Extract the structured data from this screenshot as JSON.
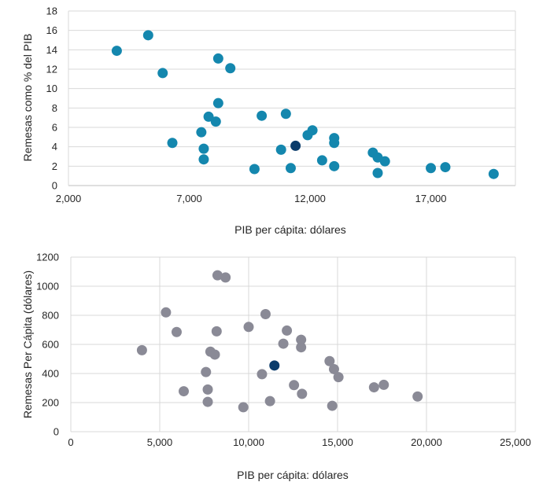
{
  "chart_data": [
    {
      "type": "scatter",
      "title": "",
      "xlabel": "PIB per cápita: dólares",
      "ylabel": "Remesas como % del PIB",
      "xlim": [
        2000,
        20500
      ],
      "ylim": [
        0,
        18
      ],
      "xticks": [
        2000,
        7000,
        12000,
        17000
      ],
      "xtick_labels": [
        "2,000",
        "7,000",
        "12,000",
        "17,000"
      ],
      "yticks": [
        0,
        2,
        4,
        6,
        8,
        10,
        12,
        14,
        16,
        18
      ],
      "ytick_labels": [
        "0",
        "2",
        "4",
        "6",
        "8",
        "10",
        "12",
        "14",
        "16",
        "18"
      ],
      "grid": "horizontal",
      "colors": {
        "default": "#1487AE",
        "highlight": "#0B3C6B"
      },
      "points": [
        {
          "x": 4000,
          "y": 13.9
        },
        {
          "x": 5300,
          "y": 15.5
        },
        {
          "x": 5900,
          "y": 11.6
        },
        {
          "x": 6300,
          "y": 4.4
        },
        {
          "x": 7500,
          "y": 5.5
        },
        {
          "x": 7600,
          "y": 3.8
        },
        {
          "x": 7600,
          "y": 2.7
        },
        {
          "x": 7800,
          "y": 7.1
        },
        {
          "x": 8100,
          "y": 6.6
        },
        {
          "x": 8200,
          "y": 8.5
        },
        {
          "x": 8200,
          "y": 13.1
        },
        {
          "x": 8700,
          "y": 12.1
        },
        {
          "x": 9700,
          "y": 1.7
        },
        {
          "x": 10000,
          "y": 7.2
        },
        {
          "x": 10800,
          "y": 3.7
        },
        {
          "x": 11000,
          "y": 7.4
        },
        {
          "x": 11200,
          "y": 1.8
        },
        {
          "x": 11400,
          "y": 4.1,
          "highlight": true
        },
        {
          "x": 11900,
          "y": 5.2
        },
        {
          "x": 12100,
          "y": 5.7
        },
        {
          "x": 12500,
          "y": 2.6
        },
        {
          "x": 13000,
          "y": 4.9
        },
        {
          "x": 13000,
          "y": 4.4
        },
        {
          "x": 13000,
          "y": 2.0
        },
        {
          "x": 14600,
          "y": 3.4
        },
        {
          "x": 14800,
          "y": 2.9
        },
        {
          "x": 14800,
          "y": 1.3
        },
        {
          "x": 15100,
          "y": 2.5
        },
        {
          "x": 17000,
          "y": 1.8
        },
        {
          "x": 17600,
          "y": 1.9
        },
        {
          "x": 19600,
          "y": 1.2
        }
      ]
    },
    {
      "type": "scatter",
      "title": "",
      "xlabel": "PIB per cápita: dólares",
      "ylabel": "Remesas Per Cápita (dólares)",
      "xlim": [
        0,
        25000
      ],
      "ylim": [
        0,
        1200
      ],
      "xticks": [
        0,
        5000,
        10000,
        15000,
        20000,
        25000
      ],
      "xtick_labels": [
        "0",
        "5,000",
        "10,000",
        "15,000",
        "20,000",
        "25,000"
      ],
      "yticks": [
        0,
        200,
        400,
        600,
        800,
        1000,
        1200
      ],
      "ytick_labels": [
        "0",
        "200",
        "400",
        "600",
        "800",
        "1000",
        "1200"
      ],
      "grid": "both",
      "colors": {
        "default": "#8A8A96",
        "highlight": "#0B3C6B"
      },
      "points": [
        {
          "x": 4000,
          "y": 560
        },
        {
          "x": 5350,
          "y": 820
        },
        {
          "x": 5950,
          "y": 685
        },
        {
          "x": 6350,
          "y": 278
        },
        {
          "x": 7600,
          "y": 410
        },
        {
          "x": 7700,
          "y": 290
        },
        {
          "x": 7700,
          "y": 205
        },
        {
          "x": 7850,
          "y": 550
        },
        {
          "x": 8100,
          "y": 530
        },
        {
          "x": 8200,
          "y": 690
        },
        {
          "x": 8250,
          "y": 1075
        },
        {
          "x": 8700,
          "y": 1060
        },
        {
          "x": 9700,
          "y": 168
        },
        {
          "x": 10000,
          "y": 720
        },
        {
          "x": 10750,
          "y": 395
        },
        {
          "x": 10950,
          "y": 808
        },
        {
          "x": 11200,
          "y": 210
        },
        {
          "x": 11450,
          "y": 455,
          "highlight": true
        },
        {
          "x": 11950,
          "y": 605
        },
        {
          "x": 12150,
          "y": 695
        },
        {
          "x": 12550,
          "y": 320
        },
        {
          "x": 12950,
          "y": 632
        },
        {
          "x": 12950,
          "y": 580
        },
        {
          "x": 13000,
          "y": 260
        },
        {
          "x": 14550,
          "y": 485
        },
        {
          "x": 14700,
          "y": 178
        },
        {
          "x": 14800,
          "y": 430
        },
        {
          "x": 15050,
          "y": 375
        },
        {
          "x": 17050,
          "y": 305
        },
        {
          "x": 17600,
          "y": 322
        },
        {
          "x": 19500,
          "y": 242
        }
      ]
    }
  ]
}
